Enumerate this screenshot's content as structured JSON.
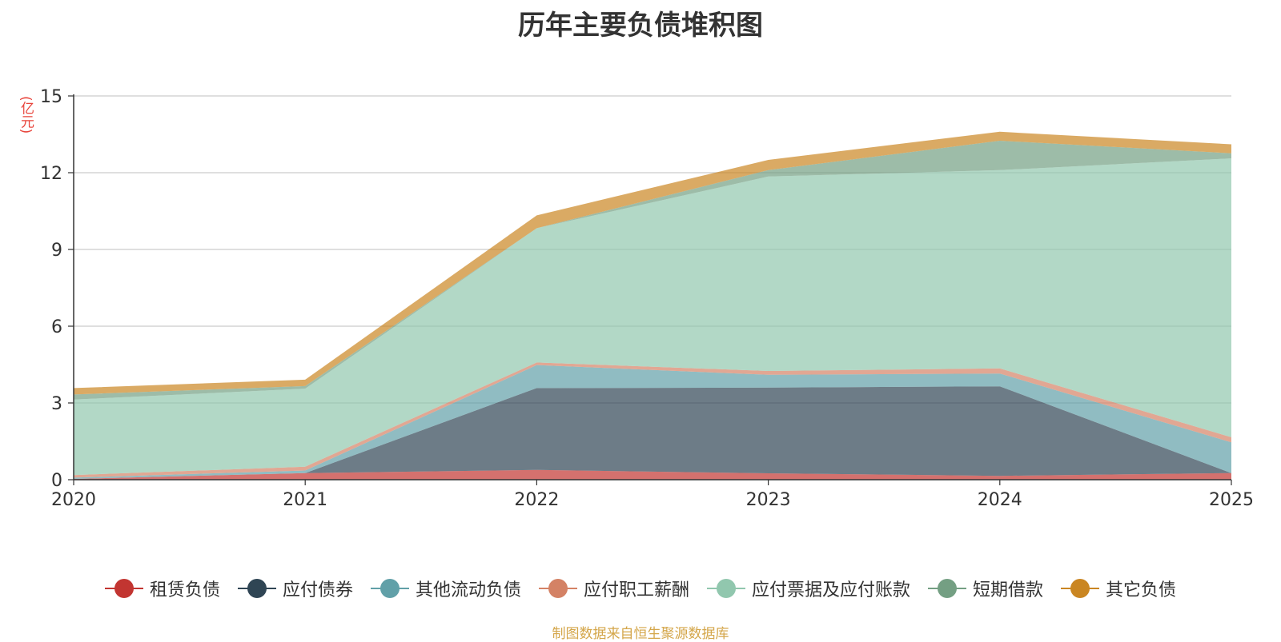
{
  "chart_data": {
    "type": "area",
    "stacked": true,
    "title": "历年主要负债堆积图",
    "y_unit": "(亿元)",
    "x": [
      "2020",
      "2021",
      "2022",
      "2023",
      "2024",
      "2025"
    ],
    "ylim": [
      0,
      15
    ],
    "y_ticks": [
      "0",
      "3",
      "6",
      "9",
      "12",
      "15"
    ],
    "grid": true,
    "legend_position": "bottom",
    "series": [
      {
        "name": "租赁负债",
        "color": "#c23531",
        "values": [
          0.03,
          0.26,
          0.38,
          0.25,
          0.15,
          0.26
        ]
      },
      {
        "name": "应付债券",
        "color": "#2f4554",
        "values": [
          0.0,
          0.0,
          3.2,
          3.35,
          3.5,
          0.0
        ]
      },
      {
        "name": "其他流动负债",
        "color": "#61a0a8",
        "values": [
          0.05,
          0.1,
          0.9,
          0.5,
          0.5,
          1.2
        ]
      },
      {
        "name": "应付职工薪酬",
        "color": "#d48265",
        "values": [
          0.1,
          0.15,
          0.1,
          0.15,
          0.2,
          0.2
        ]
      },
      {
        "name": "应付票据及应付账款",
        "color": "#91c7ae",
        "values": [
          2.95,
          3.05,
          5.25,
          7.6,
          7.75,
          10.9
        ]
      },
      {
        "name": "短期借款",
        "color": "#749f83",
        "values": [
          0.2,
          0.1,
          0.0,
          0.25,
          1.15,
          0.2
        ]
      },
      {
        "name": "其它负债",
        "color": "#ca8622",
        "values": [
          0.25,
          0.25,
          0.5,
          0.4,
          0.35,
          0.35
        ]
      }
    ]
  },
  "source_note": "制图数据来自恒生聚源数据库"
}
